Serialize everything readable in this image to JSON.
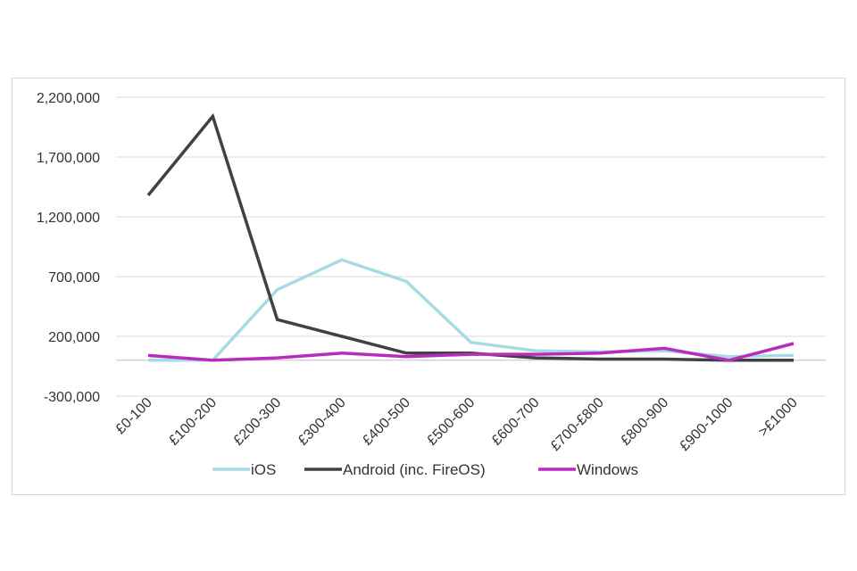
{
  "chart_data": {
    "type": "line",
    "title": "",
    "xlabel": "",
    "ylabel": "",
    "categories": [
      "£0-100",
      "£100-200",
      "£200-300",
      "£300-400",
      "£400-500",
      "£500-600",
      "£600-700",
      "£700-£800",
      "£800-900",
      "£900-1000",
      ">£1000"
    ],
    "ylim": [
      -300000,
      2200000
    ],
    "yticks": [
      2200000,
      1700000,
      1200000,
      700000,
      200000,
      -300000
    ],
    "ytick_labels": [
      "2,200,000",
      "1,700,000",
      "1,200,000",
      "700,000",
      "200,000",
      "-300,000"
    ],
    "grid": true,
    "legend_position": "bottom",
    "series": [
      {
        "name": "iOS",
        "color": "#a6dbe5",
        "values": [
          0,
          0,
          590000,
          840000,
          660000,
          150000,
          80000,
          70000,
          80000,
          30000,
          40000
        ]
      },
      {
        "name": "Android (inc. FireOS)",
        "color": "#414045",
        "values": [
          1380000,
          2040000,
          340000,
          200000,
          60000,
          60000,
          20000,
          10000,
          10000,
          0,
          0
        ]
      },
      {
        "name": "Windows",
        "color": "#b72cbd",
        "values": [
          40000,
          0,
          20000,
          60000,
          30000,
          50000,
          50000,
          60000,
          100000,
          0,
          140000
        ]
      }
    ]
  }
}
